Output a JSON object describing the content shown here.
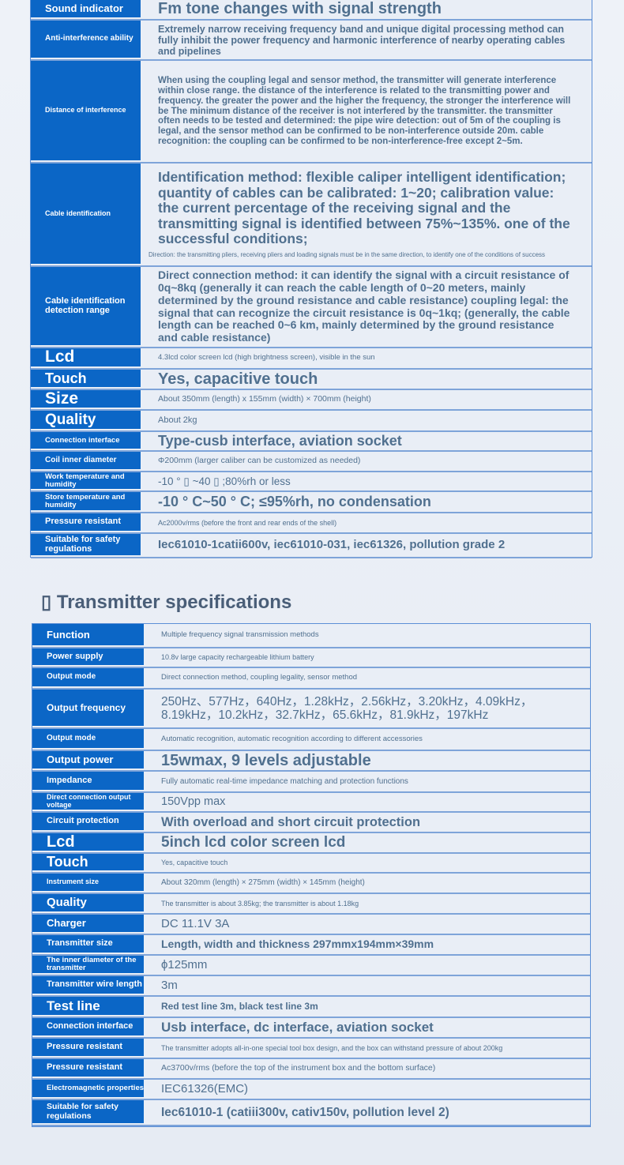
{
  "receiver_table": {
    "rows": [
      {
        "label": "Sound indicator",
        "value": "Fm tone changes with signal strength"
      },
      {
        "label": "Anti-interference ability",
        "value": "Extremely narrow receiving frequency band and unique digital processing method can fully inhibit the power frequency and harmonic interference of nearby operating cables and pipelines"
      },
      {
        "label": "Distance of interference",
        "value": "When using the coupling legal and sensor method, the transmitter will generate interference within close range. the distance of the interference is related to the transmitting power and frequency. the greater the power and the higher the frequency, the stronger the interference will be The minimum distance of the receiver is not interfered by the transmitter. the transmitter often needs to be tested and determined: the pipe wire detection: out of 5m of the coupling is legal, and the sensor method can be confirmed to be non-interference outside 20m. cable recognition: the coupling can be confirmed to be non-interference-free except 2~5m."
      },
      {
        "label": "Cable identification",
        "value": "Identification method: flexible caliper intelligent identification; quantity of cables can be calibrated: 1~20; calibration value: the current percentage of the receiving signal and the transmitting signal is identified between 75%~135%. one of the successful conditions;",
        "note": "Direction: the transmitting pliers, receiving pliers and loading signals must be in the same direction, to identify one of the conditions of success"
      },
      {
        "label": "Cable identification detection range",
        "value": "Direct connection method: it can identify the signal with a circuit resistance of 0q~8kq (generally it can reach the cable length of 0~20 meters, mainly determined by the ground resistance and cable resistance) coupling legal: the signal that can recognize the circuit resistance is 0q~1kq; (generally, the cable length can be reached 0~6 km, mainly determined by the ground resistance and cable resistance)"
      },
      {
        "label": "Lcd",
        "value": "4.3lcd color screen lcd (high brightness screen), visible in the sun"
      },
      {
        "label": "Touch",
        "value": "Yes, capacitive touch"
      },
      {
        "label": "Size",
        "value": "About 350mm (length) x 155mm (width) × 700mm (height)"
      },
      {
        "label": "Quality",
        "value": "About 2kg"
      },
      {
        "label": "Connection interface",
        "value": "Type-cusb interface, aviation socket"
      },
      {
        "label": "Coil inner diameter",
        "value": "Φ200mm (larger caliber can be customized as needed)"
      },
      {
        "label": "Work temperature and humidity",
        "value": "-10 ° ▯ ~40 ▯ ;80%rh or less"
      },
      {
        "label": "Store temperature and humidity",
        "value": "-10 ° C~50 ° C; ≤95%rh, no condensation"
      },
      {
        "label": "Pressure resistant",
        "value": "Ac2000v/rms (before the front and rear ends of the shell)"
      },
      {
        "label": "Suitable for safety regulations",
        "value": "Iec61010-1catii600v, iec61010-031, iec61326, pollution grade 2"
      }
    ]
  },
  "section_heading": "▯ Transmitter specifications",
  "transmitter_table": {
    "rows": [
      {
        "label": "Function",
        "value": "Multiple frequency signal transmission methods"
      },
      {
        "label": "Power supply",
        "value": "10.8v large capacity rechargeable lithium battery"
      },
      {
        "label": "Output mode",
        "value": "Direct connection method, coupling legality, sensor method"
      },
      {
        "label": "Output frequency",
        "value": "250Hz、577Hz，640Hz，1.28kHz，2.56kHz，3.20kHz，4.09kHz，8.19kHz，10.2kHz，32.7kHz，65.6kHz，81.9kHz，197kHz"
      },
      {
        "label": "Output mode",
        "value": "Automatic recognition, automatic recognition according to different accessories"
      },
      {
        "label": "Output power",
        "value": "15wmax, 9 levels adjustable"
      },
      {
        "label": "Impedance",
        "value": "Fully automatic real-time impedance matching and protection functions"
      },
      {
        "label": "Direct connection output voltage",
        "value": "150Vpp max"
      },
      {
        "label": "Circuit protection",
        "value": "With overload and short circuit protection"
      },
      {
        "label": "Lcd",
        "value": "5inch lcd color screen lcd"
      },
      {
        "label": "Touch",
        "value": "Yes, capacitive touch"
      },
      {
        "label": "Instrument size",
        "value": "About 320mm (length) × 275mm (width) × 145mm (height)"
      },
      {
        "label": "Quality",
        "value": "The transmitter is about 3.85kg; the transmitter is about 1.18kg"
      },
      {
        "label": "Charger",
        "value": "DC 11.1V 3A"
      },
      {
        "label": "Transmitter size",
        "value": "Length, width and thickness 297mmx194mm×39mm"
      },
      {
        "label": "The inner diameter of the transmitter",
        "value": "ϕ125mm"
      },
      {
        "label": "Transmitter wire length",
        "value": "3m"
      },
      {
        "label": "Test line",
        "value": "Red test line 3m, black test line 3m"
      },
      {
        "label": "Connection interface",
        "value": "Usb interface, dc interface, aviation socket"
      },
      {
        "label": "Pressure resistant",
        "value": "The transmitter adopts all-in-one special tool box design, and the box can withstand pressure of about 200kg"
      },
      {
        "label": "Pressure resistant",
        "value": "Ac3700v/rms (before the top of the instrument box and the bottom surface)"
      },
      {
        "label": "Electromagnetic properties",
        "value": "IEC61326(EMC)"
      },
      {
        "label": "Suitable for safety regulations",
        "value": "Iec61010-1 (catiii300v, cativ150v, pollution level 2)"
      }
    ]
  }
}
